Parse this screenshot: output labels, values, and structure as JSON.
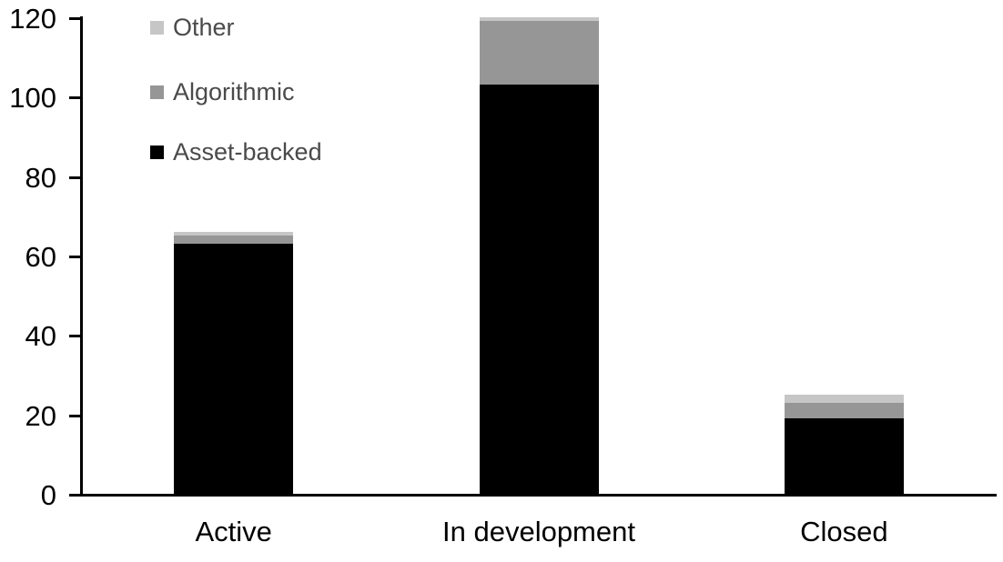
{
  "chart_data": {
    "type": "bar",
    "stacked": true,
    "title": "",
    "xlabel": "",
    "ylabel": "",
    "categories": [
      "Active",
      "In development",
      "Closed"
    ],
    "series": [
      {
        "name": "Asset-backed",
        "color": "#000000",
        "values": [
          63,
          103,
          19
        ]
      },
      {
        "name": "Algorithmic",
        "color": "#969696",
        "values": [
          2,
          16,
          4
        ]
      },
      {
        "name": "Other",
        "color": "#c6c6c6",
        "values": [
          1,
          1,
          2
        ]
      }
    ],
    "totals": [
      66,
      120,
      25
    ],
    "ylim": [
      0,
      120
    ],
    "yticks": [
      0,
      20,
      40,
      60,
      80,
      100,
      120
    ],
    "grid": false,
    "legend_position": "top-left"
  },
  "legend": {
    "entries": [
      {
        "label": "Other",
        "color": "#c6c6c6"
      },
      {
        "label": "Algorithmic",
        "color": "#969696"
      },
      {
        "label": "Asset-backed",
        "color": "#000000"
      }
    ]
  }
}
